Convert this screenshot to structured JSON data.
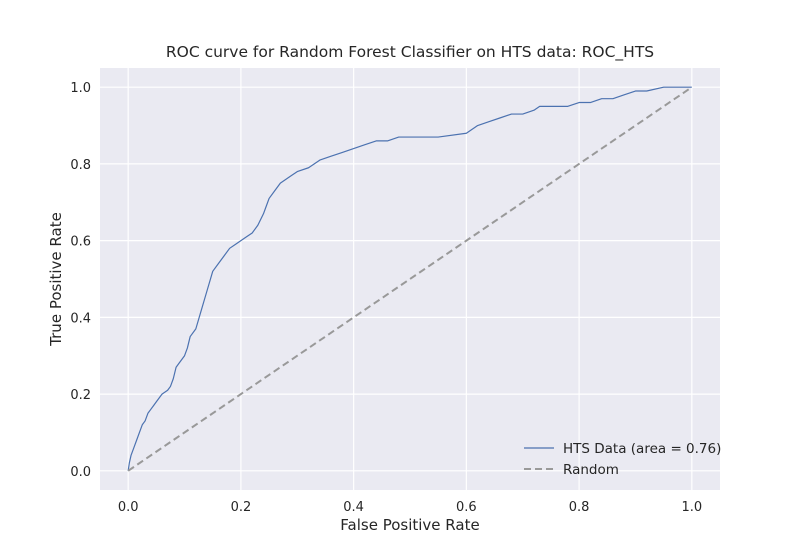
{
  "chart_data": {
    "type": "line",
    "title": "ROC curve for Random Forest Classifier on HTS data: ROC_HTS",
    "xlabel": "False Positive Rate",
    "ylabel": "True Positive Rate",
    "xlim": [
      -0.05,
      1.05
    ],
    "ylim": [
      -0.05,
      1.05
    ],
    "xticks": [
      "0.0",
      "0.2",
      "0.4",
      "0.6",
      "0.8",
      "1.0"
    ],
    "yticks": [
      "0.0",
      "0.2",
      "0.4",
      "0.6",
      "0.8",
      "1.0"
    ],
    "grid": true,
    "legend_position": "lower right",
    "series": [
      {
        "name": "HTS Data (area = 0.76)",
        "color": "#4c72b0",
        "style": "solid",
        "x": [
          0.0,
          0.002,
          0.005,
          0.01,
          0.015,
          0.02,
          0.025,
          0.03,
          0.035,
          0.04,
          0.045,
          0.05,
          0.06,
          0.07,
          0.075,
          0.08,
          0.085,
          0.09,
          0.1,
          0.105,
          0.11,
          0.12,
          0.13,
          0.14,
          0.15,
          0.16,
          0.17,
          0.18,
          0.19,
          0.2,
          0.21,
          0.22,
          0.23,
          0.24,
          0.245,
          0.25,
          0.26,
          0.27,
          0.28,
          0.29,
          0.3,
          0.32,
          0.34,
          0.36,
          0.38,
          0.4,
          0.42,
          0.44,
          0.46,
          0.48,
          0.5,
          0.55,
          0.6,
          0.61,
          0.62,
          0.64,
          0.66,
          0.68,
          0.7,
          0.72,
          0.73,
          0.75,
          0.78,
          0.8,
          0.82,
          0.84,
          0.86,
          0.88,
          0.9,
          0.92,
          0.95,
          0.98,
          1.0
        ],
        "y": [
          0.0,
          0.02,
          0.04,
          0.06,
          0.08,
          0.1,
          0.12,
          0.13,
          0.15,
          0.16,
          0.17,
          0.18,
          0.2,
          0.21,
          0.22,
          0.24,
          0.27,
          0.28,
          0.3,
          0.32,
          0.35,
          0.37,
          0.42,
          0.47,
          0.52,
          0.54,
          0.56,
          0.58,
          0.59,
          0.6,
          0.61,
          0.62,
          0.64,
          0.67,
          0.69,
          0.71,
          0.73,
          0.75,
          0.76,
          0.77,
          0.78,
          0.79,
          0.81,
          0.82,
          0.83,
          0.84,
          0.85,
          0.86,
          0.86,
          0.87,
          0.87,
          0.87,
          0.88,
          0.89,
          0.9,
          0.91,
          0.92,
          0.93,
          0.93,
          0.94,
          0.95,
          0.95,
          0.95,
          0.96,
          0.96,
          0.97,
          0.97,
          0.98,
          0.99,
          0.99,
          1.0,
          1.0,
          1.0
        ]
      },
      {
        "name": "Random",
        "color": "#999999",
        "style": "dashed",
        "x": [
          0.0,
          1.0
        ],
        "y": [
          0.0,
          1.0
        ]
      }
    ]
  }
}
